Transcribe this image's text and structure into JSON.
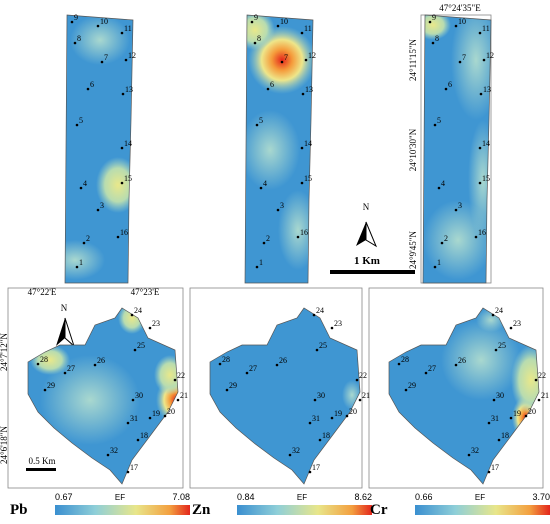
{
  "sites_north": [
    "1",
    "2",
    "3",
    "4",
    "5",
    "6",
    "7",
    "8",
    "9",
    "10",
    "11",
    "12",
    "13",
    "14",
    "15",
    "16"
  ],
  "sites_south": [
    "17",
    "18",
    "19",
    "20",
    "21",
    "22",
    "23",
    "24",
    "25",
    "26",
    "27",
    "28",
    "29",
    "30",
    "31",
    "32"
  ],
  "coordinates": {
    "top_lon": "47°24'35\"E",
    "top_lat": [
      "24°11'15\"N",
      "24°10'30\"N",
      "24°9'45\"N"
    ],
    "bottom_lon": [
      "47°22'E",
      "47°23'E"
    ],
    "bottom_lat": [
      "24°7'12\"N",
      "24°6'18\"N"
    ]
  },
  "north_label": "N",
  "scale_top": "1 Km",
  "scale_bottom": "0.5 Km",
  "legends": [
    {
      "element": "Pb",
      "min": "0.67",
      "unit": "EF",
      "max": "7.08"
    },
    {
      "element": "Zn",
      "min": "0.84",
      "unit": "EF",
      "max": "8.62"
    },
    {
      "element": "Cr",
      "min": "0.66",
      "unit": "EF",
      "max": "3.70"
    }
  ]
}
